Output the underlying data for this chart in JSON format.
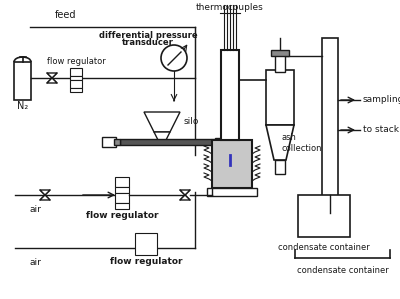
{
  "bg_color": "#ffffff",
  "line_color": "#1a1a1a",
  "gray_color": "#888888",
  "dark_gray": "#555555",
  "blue_color": "#3333bb",
  "labels": {
    "thermocouples": "thermocouples",
    "feed": "feed",
    "differential_pressure_1": "differential pressure",
    "differential_pressure_2": "transducer",
    "flow_regulator1": "flow regulator",
    "N2": "N₂",
    "silo": "silo",
    "air1": "air",
    "air2": "air",
    "flow_regulator2": "flow regulator",
    "flow_regulator3": "flow regulator",
    "sampling": "sampling",
    "to_stack": "to stack",
    "ash_collection": "ash\ncollection",
    "condensate1": "condensate container",
    "condensate2": "condensate container"
  },
  "figsize": [
    4.0,
    2.99
  ],
  "dpi": 100
}
